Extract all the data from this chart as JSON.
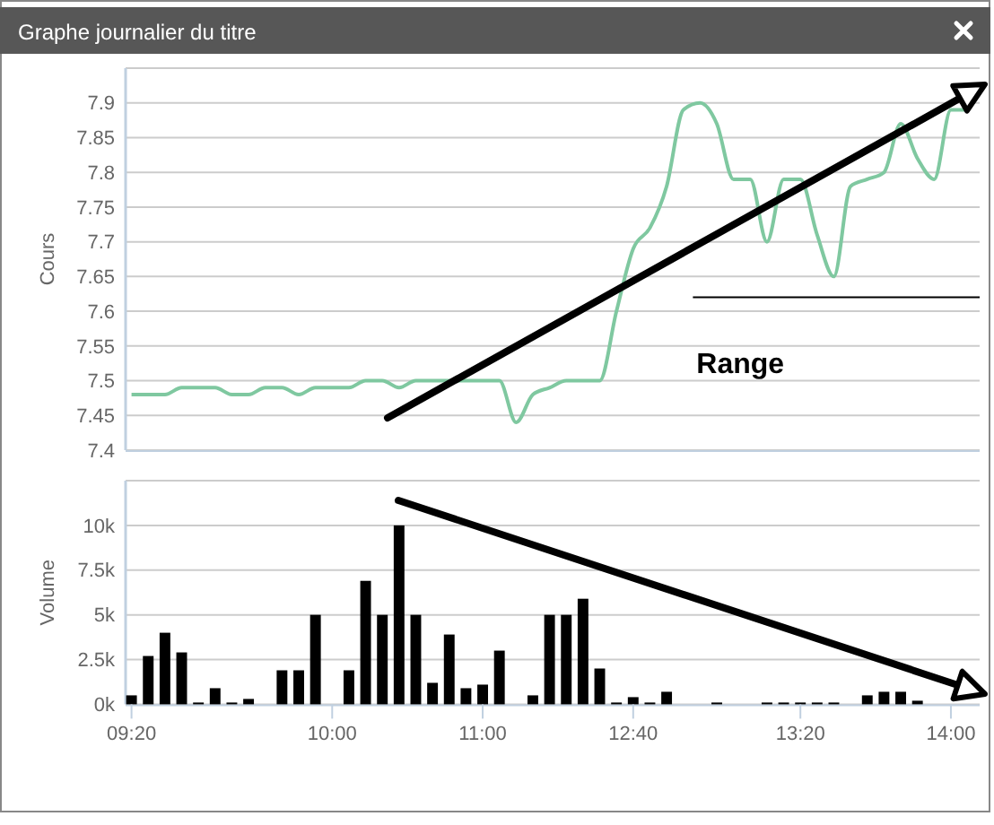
{
  "chart_data": [
    {
      "type": "line",
      "title": "Graphe journalier du titre",
      "ylabel": "Cours",
      "ref_lines": [
        {
          "axis": "y",
          "value": 7.62,
          "label": "Range",
          "color": "#000000"
        }
      ],
      "series": [
        {
          "color": "#7fc8a0",
          "values": [
            7.48,
            7.48,
            7.48,
            7.49,
            7.49,
            7.49,
            7.48,
            7.48,
            7.49,
            7.49,
            7.48,
            7.49,
            7.49,
            7.49,
            7.5,
            7.5,
            7.49,
            7.5,
            7.5,
            7.5,
            7.5,
            7.5,
            7.5,
            7.44,
            7.48,
            7.49,
            7.5,
            7.5,
            7.5,
            7.6,
            7.69,
            7.72,
            7.78,
            7.89,
            7.9,
            7.87,
            7.79,
            7.79,
            7.7,
            7.79,
            7.79,
            7.71,
            7.65,
            7.78,
            7.79,
            7.8,
            7.87,
            7.82,
            7.79,
            7.89,
            7.89
          ]
        }
      ],
      "ylim": [
        7.4,
        7.95
      ],
      "yticks": [
        7.4,
        7.45,
        7.5,
        7.55,
        7.6,
        7.65,
        7.7,
        7.75,
        7.8,
        7.85,
        7.9,
        {
          "value": 7.95,
          "label": null
        }
      ],
      "grid": "y",
      "tick_labels": "y",
      "marker": "none"
    },
    {
      "type": "bar",
      "ylabel": "Volume",
      "categories": [
        "09:20",
        null,
        null,
        null,
        null,
        null,
        null,
        null,
        null,
        null,
        null,
        null,
        "10:00",
        null,
        null,
        null,
        null,
        null,
        null,
        null,
        null,
        "11:00",
        null,
        null,
        null,
        null,
        null,
        null,
        null,
        null,
        "12:40",
        null,
        null,
        null,
        null,
        null,
        null,
        null,
        null,
        null,
        "13:20",
        null,
        null,
        null,
        null,
        null,
        null,
        null,
        null,
        "14:00",
        null
      ],
      "series": [
        {
          "color": "#000000",
          "values": [
            500,
            2700,
            4000,
            2900,
            100,
            900,
            100,
            300,
            0,
            1900,
            1900,
            5000,
            0,
            1900,
            6900,
            5000,
            10000,
            5000,
            1200,
            3900,
            900,
            1100,
            3000,
            0,
            500,
            5000,
            5000,
            5900,
            2000,
            100,
            400,
            100,
            700,
            0,
            0,
            100,
            0,
            0,
            100,
            100,
            100,
            100,
            100,
            0,
            500,
            700,
            700,
            200,
            0,
            0,
            0
          ]
        }
      ],
      "ylim": [
        0,
        12500
      ],
      "yticks": [
        {
          "value": 0,
          "label": "0k"
        },
        {
          "value": 2500,
          "label": "2.5k"
        },
        {
          "value": 5000,
          "label": "5k"
        },
        {
          "value": 7500,
          "label": "7.5k"
        },
        {
          "value": 10000,
          "label": "10k"
        }
      ],
      "grid": "y"
    }
  ]
}
